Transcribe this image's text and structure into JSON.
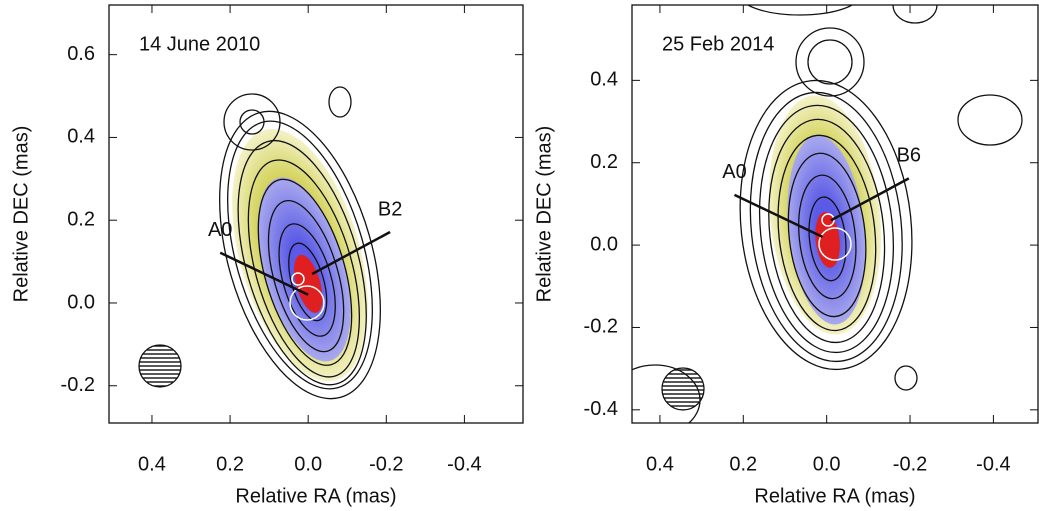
{
  "chart_data": [
    {
      "type": "contour",
      "panel_label": "14 June 2010",
      "xlabel": "Relative RA (mas)",
      "ylabel": "Relative DEC (mas)",
      "xlim": [
        0.51,
        -0.55
      ],
      "ylim": [
        -0.29,
        0.72
      ],
      "xticks": [
        0.4,
        0.2,
        {
          "value": 0,
          "label": "0.0"
        },
        -0.2,
        -0.4
      ],
      "yticks": [
        -0.2,
        {
          "value": 0,
          "label": "0.0"
        },
        0.2,
        0.4,
        0.6
      ],
      "annotations": [
        {
          "text": "A0",
          "x": 0.0,
          "y": 0.02
        },
        {
          "text": "B2",
          "x": -0.01,
          "y": 0.07
        }
      ]
    },
    {
      "type": "contour",
      "panel_label": "25 Feb 2014",
      "xlabel": "Relative RA (mas)",
      "ylabel": "Relative DEC (mas)",
      "xlim": [
        0.467,
        -0.507
      ],
      "ylim": [
        -0.432,
        0.583
      ],
      "xticks": [
        0.4,
        0.2,
        {
          "value": 0,
          "label": "0.0"
        },
        -0.2,
        -0.4
      ],
      "yticks": [
        -0.4,
        -0.2,
        {
          "value": 0,
          "label": "0.0"
        },
        0.2,
        0.4
      ],
      "annotations": [
        {
          "text": "A0",
          "x": 0.01,
          "y": 0.02
        },
        {
          "text": "B6",
          "x": -0.01,
          "y": 0.06
        }
      ]
    }
  ]
}
